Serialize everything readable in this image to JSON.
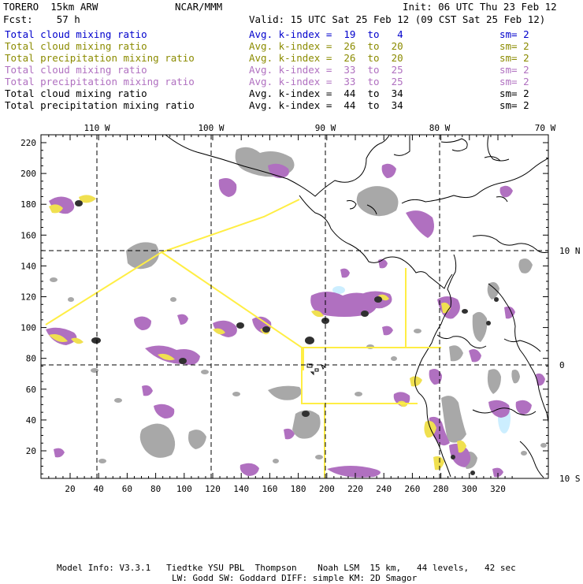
{
  "header": {
    "model": "TORERO  15km ARW",
    "fcst": "Fcst:    57 h",
    "org": "NCAR/MMM",
    "init": "Init: 06 UTC Thu 23 Feb 12",
    "valid": "Valid: 15 UTC Sat 25 Feb 12 (09 CST Sat 25 Feb 12)"
  },
  "legend": [
    {
      "field": "Total cloud mixing ratio",
      "kindex": "Avg. k-index =  19  to   4",
      "sm": "sm= 2",
      "color": "#0000cc"
    },
    {
      "field": "Total cloud mixing ratio",
      "kindex": "Avg. k-index =  26  to  20",
      "sm": "sm= 2",
      "color": "#8b8b00"
    },
    {
      "field": "Total precipitation mixing ratio",
      "kindex": "Avg. k-index =  26  to  20",
      "sm": "sm= 2",
      "color": "#8b8b00"
    },
    {
      "field": "Total cloud mixing ratio",
      "kindex": "Avg. k-index =  33  to  25",
      "sm": "sm= 2",
      "color": "#b070c0"
    },
    {
      "field": "Total precipitation mixing ratio",
      "kindex": "Avg. k-index =  33  to  25",
      "sm": "sm= 2",
      "color": "#b070c0"
    },
    {
      "field": "Total cloud mixing ratio",
      "kindex": "Avg. k-index =  44  to  34",
      "sm": "sm= 2",
      "color": "#000000"
    },
    {
      "field": "Total precipitation mixing ratio",
      "kindex": "Avg. k-index =  44  to  34",
      "sm": "sm= 2",
      "color": "#000000"
    }
  ],
  "axes": {
    "top_lon_labels": [
      "110 W",
      "100 W",
      "90 W",
      "80 W",
      "70 W"
    ],
    "right_lat_labels": [
      "10 N",
      "0",
      "10 S"
    ],
    "left_y_ticks": [
      "220",
      "200",
      "180",
      "160",
      "140",
      "120",
      "100",
      "80",
      "60",
      "40",
      "20"
    ],
    "bottom_x_ticks": [
      "20",
      "40",
      "60",
      "80",
      "100",
      "120",
      "140",
      "160",
      "180",
      "200",
      "220",
      "240",
      "260",
      "280",
      "300",
      "320"
    ]
  },
  "colors": {
    "cloud_gray": "#a8a8a8",
    "cloud_dark": "#303030",
    "precip_purple": "#b070c0",
    "precip_yellow": "#f0e050",
    "flight_track": "#ffee44",
    "coast": "#000000",
    "light_cyan": "#cceeff"
  },
  "footer": {
    "line1": "Model Info: V3.3.1   Tiedtke YSU PBL  Thompson    Noah LSM  15 km,   44 levels,   42 sec",
    "line2": "LW: Godd SW: Goddard DIFF: simple KM: 2D Smagor"
  }
}
